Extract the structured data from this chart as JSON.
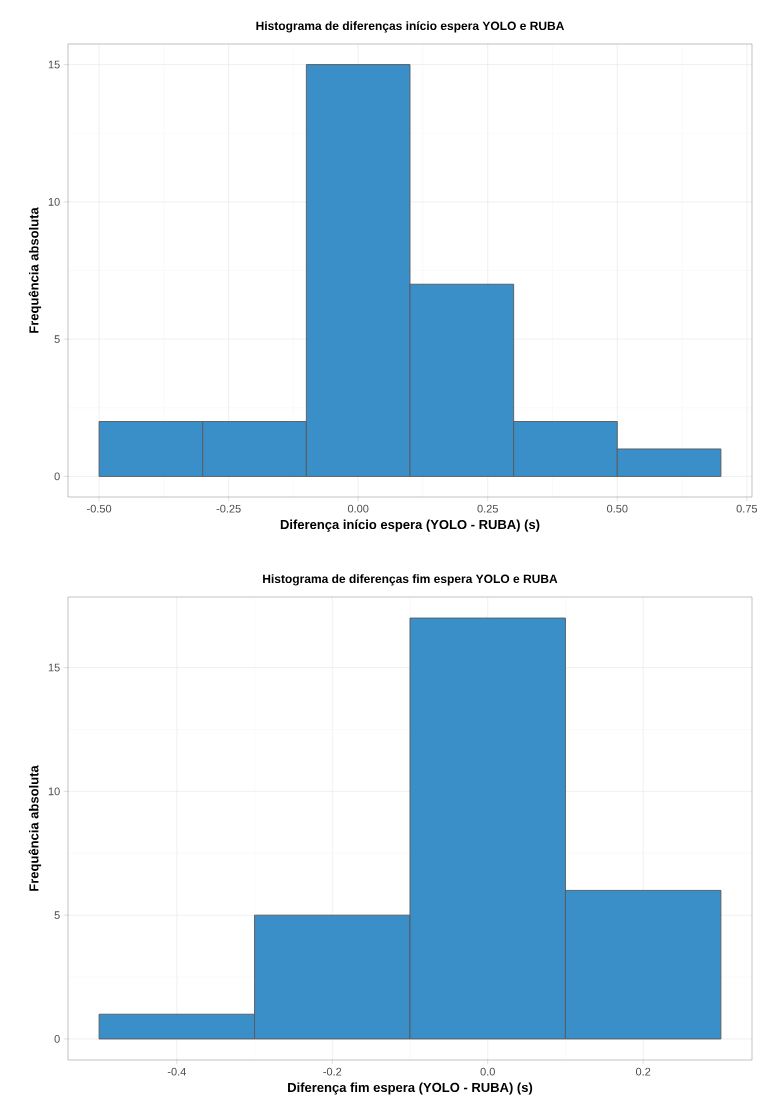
{
  "chart_data": [
    {
      "type": "histogram",
      "title": "Histograma de diferenças início espera YOLO e RUBA",
      "xlabel": "Diferença início espera (YOLO - RUBA) (s)",
      "ylabel": "Frequência absoluta",
      "bins": [
        -0.5,
        -0.3,
        -0.1,
        0.1,
        0.3,
        0.5,
        0.7
      ],
      "values": [
        2,
        2,
        15,
        7,
        2,
        1
      ],
      "color": "#3a8fc9",
      "xlim": [
        -0.56,
        0.76
      ],
      "ylim": [
        -0.75,
        15.75
      ],
      "xticks": [
        {
          "value": -0.5,
          "label": "-0.50"
        },
        {
          "value": -0.25,
          "label": "-0.25"
        },
        {
          "value": 0,
          "label": "0.00"
        },
        {
          "value": 0.25,
          "label": "0.25"
        },
        {
          "value": 0.5,
          "label": "0.50"
        },
        {
          "value": 0.75,
          "label": "0.75"
        }
      ],
      "yticks": [
        0,
        5,
        10,
        15
      ],
      "grid": true
    },
    {
      "type": "histogram",
      "title": "Histograma de diferenças fim espera YOLO e RUBA",
      "xlabel": "Diferença fim espera (YOLO - RUBA) (s)",
      "ylabel": "Frequência absoluta",
      "bins": [
        -0.5,
        -0.3,
        -0.1,
        0.1,
        0.3
      ],
      "values": [
        1,
        5,
        17,
        6
      ],
      "color": "#3a8fc9",
      "xlim": [
        -0.54,
        0.34
      ],
      "ylim": [
        -0.85,
        17.85
      ],
      "xticks": [
        {
          "value": -0.4,
          "label": "-0.4"
        },
        {
          "value": -0.2,
          "label": "-0.2"
        },
        {
          "value": 0,
          "label": "0.0"
        },
        {
          "value": 0.2,
          "label": "0.2"
        }
      ],
      "yticks": [
        0,
        5,
        10,
        15
      ],
      "grid": true
    }
  ]
}
